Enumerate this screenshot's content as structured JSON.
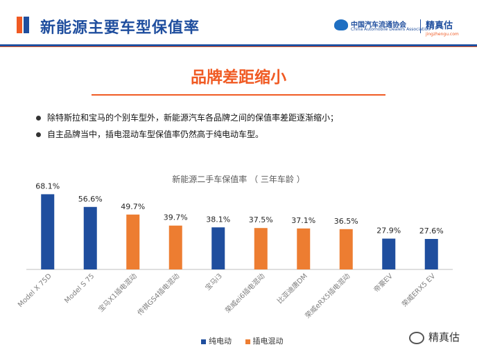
{
  "header": {
    "title": "新能源主要车型保值率",
    "cada_name_cn": "中国汽车流通协会",
    "cada_name_en": "China Automobile Dealers Association",
    "jzg_name_cn": "精真估",
    "jzg_site": "jingzhengu.com"
  },
  "subtitle": "品牌差距缩小",
  "bullets": [
    "除特斯拉和宝马的个别车型外，新能源汽车各品牌之间的保值率差距逐渐缩小；",
    "自主品牌当中，插电混动车型保值率仍然高于纯电动车型。"
  ],
  "watermark": "精真估",
  "colors": {
    "ev": "#1f4e9e",
    "phev": "#ed7d31",
    "accent": "#f05a23"
  },
  "chart_data": {
    "type": "bar",
    "title": "新能源二手车保值率 （ 三年车龄 ）",
    "categories": [
      "Model X 75D",
      "Model S 75",
      "宝马X1插电混动",
      "传祺GS4插电混动",
      "宝马i3",
      "荣威ei6插电混动",
      "比亚迪唐DM",
      "荣威eRX5插电混动",
      "帝豪EV",
      "荣威ERX5 EV"
    ],
    "series": [
      {
        "name": "纯电动",
        "values": [
          68.1,
          56.6,
          null,
          null,
          38.1,
          null,
          null,
          null,
          27.9,
          27.6
        ]
      },
      {
        "name": "插电混动",
        "values": [
          null,
          null,
          49.7,
          39.7,
          null,
          37.5,
          37.1,
          36.5,
          null,
          null
        ]
      }
    ],
    "data_labels": [
      "68.1%",
      "56.6%",
      "49.7%",
      "39.7%",
      "38.1%",
      "37.5%",
      "37.1%",
      "36.5%",
      "27.9%",
      "27.6%"
    ],
    "ylim": [
      0,
      80
    ],
    "grid": false,
    "legend": "bottom"
  }
}
